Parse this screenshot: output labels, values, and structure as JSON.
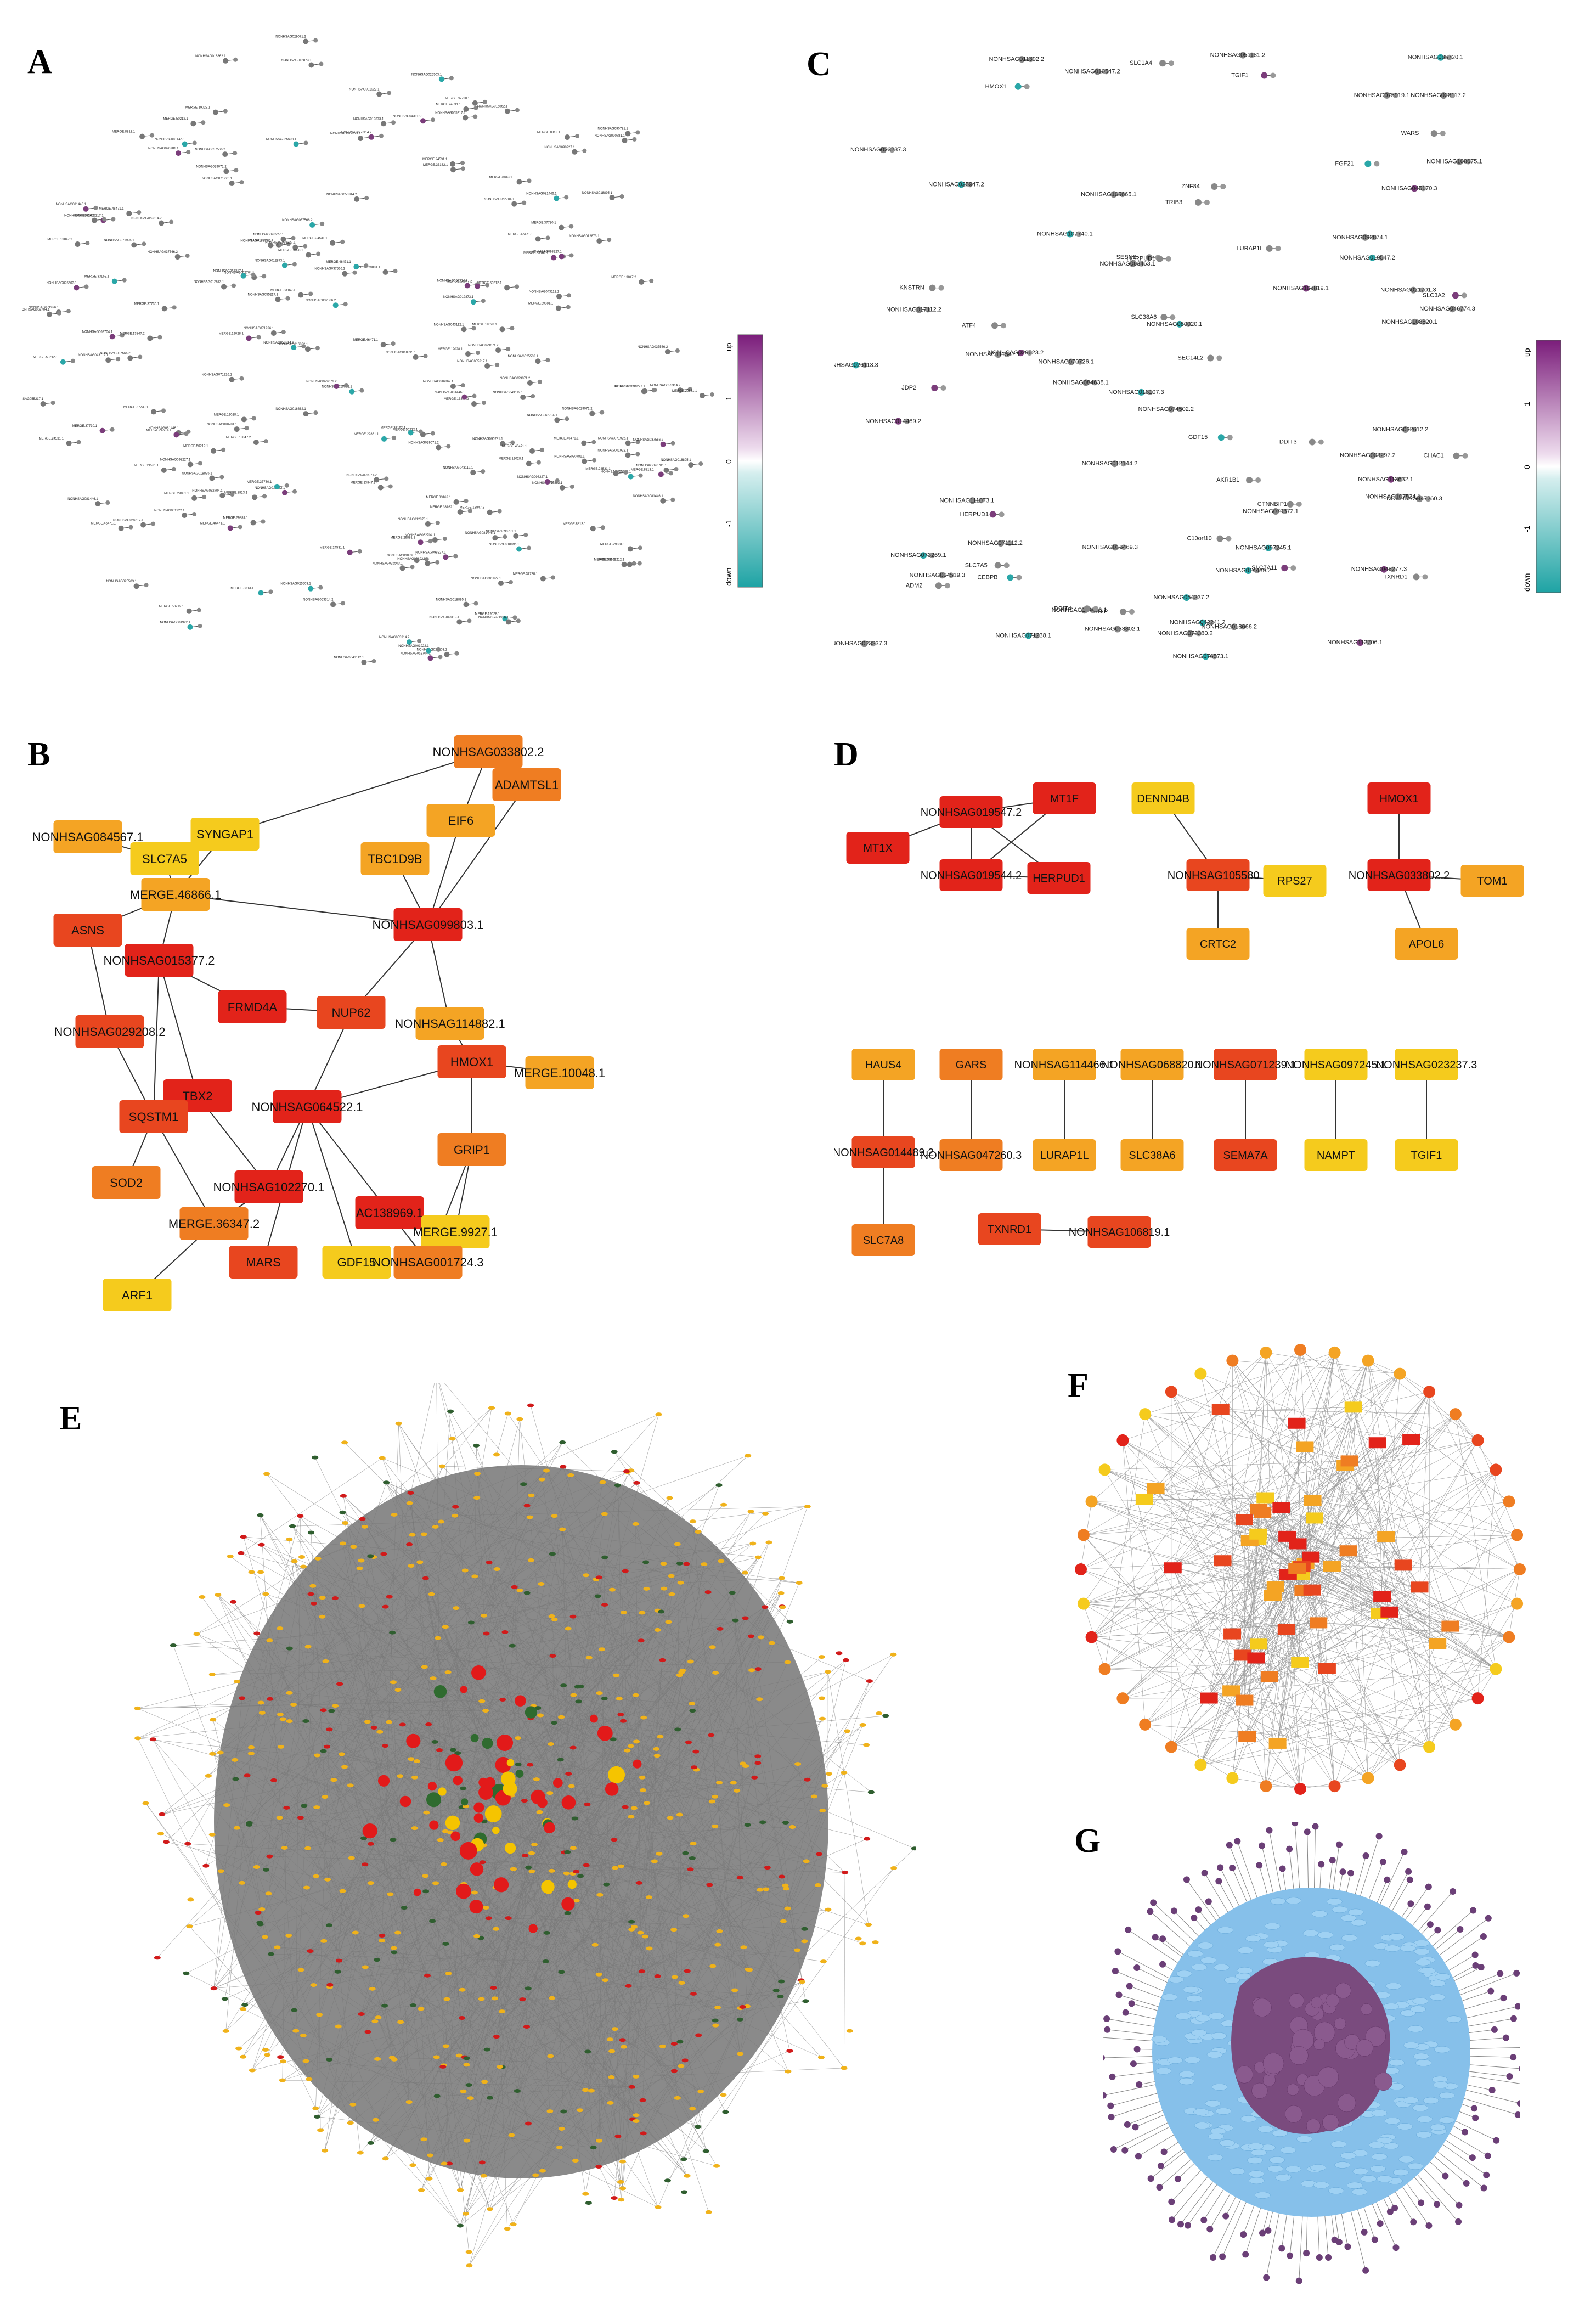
{
  "panels": {
    "A": "A",
    "B": "B",
    "C": "C",
    "D": "D",
    "E": "E",
    "F": "F",
    "G": "G"
  },
  "colors": {
    "red": "#e2231a",
    "red_orange": "#e8461f",
    "orange": "#ef7d22",
    "light_orange": "#f4a424",
    "yellow": "#f5cb1d",
    "purple": "#7b3d7b",
    "cyan": "#2aa7a8",
    "edge": "#6f6f6f",
    "lightblue": "#86c0ea"
  },
  "colorbar": {
    "top_label": "up",
    "bottom_label": "down",
    "ticks": [
      "1",
      "0",
      "-1"
    ]
  },
  "panelA": {
    "labels": [
      "NONHSAG037566.2",
      "MERGE.29881.1",
      "NONHSAG090781.1",
      "NONHSAG016862.1",
      "MERGE.19028.1",
      "NONHSAG043112.1",
      "MERGE.13847.2",
      "NONHSAG098227.1",
      "MERGE.46471.1",
      "NONHSAG053314.2",
      "NONHSAG018895.1",
      "MERGE.37730.1",
      "NONHSAG012873.1",
      "NONHSAG055217.1",
      "MERGE.33162.1",
      "NONHSAG071926.1",
      "NONHSAG029071.2",
      "MERGE.8813.1",
      "NONHSAG062704.1",
      "NONHSAG025503.1",
      "MERGE.24531.1",
      "NONHSAG081446.1",
      "NONHSAG001922.1",
      "MERGE.50212.1"
    ]
  },
  "panelC": {
    "labels": [
      "NONHSAG042241.2",
      "NONHSAG045170.3",
      "NONHSAG032612.2",
      "NONHSAG070726.1",
      "NONHSAG112706.1",
      "NONHSAG029623.2",
      "ZNF84",
      "NONHSAG019547.2",
      "NONHSAG025947.2",
      "NONHSAG047260.3",
      "NONHSAG014489.2",
      "NONHSAG083463.1",
      "NONHSAG085720.1",
      "NONHSAG048277.3",
      "SLC38A6",
      "HMOX1",
      "NONHSAG033802.1",
      "TXNRD1",
      "NONHSAG079372.1",
      "AKR1B1",
      "NONHSAG107524.1",
      "NONHSAG004519.3",
      "NONHSAG113632.1",
      "NONHSAG097245.1",
      "NONHSAG108819.1",
      "ATF4",
      "NONHSAG051181.2",
      "NONHSAG028117.2",
      "NONHSAG071238.1",
      "SLC7A5",
      "NONHSAG011392.2",
      "NONHSAG114466.1",
      "LURAP1L",
      "NONHSAG026113.3",
      "SESN2",
      "NONHSAG023237.3",
      "NONHSAG074502.2",
      "NONHSAG092874.1",
      "CTNNBIP1",
      "NONHSAG075919.1",
      "WARS",
      "NONHSAG080020.1",
      "TGIF1",
      "NONHSAG023237.3",
      "FGF21",
      "NONHSAG010547.2",
      "NONHSAG073380.2",
      "NONHSAG111073.1",
      "CEBPB",
      "SLC3A2",
      "NONHSAG111547.1",
      "NONHSAG084638.1",
      "CHAC1",
      "NONHSAG107740.1",
      "HERPUD1",
      "NONHSAG054237.2",
      "NONHSAG071112.2",
      "NONHSAG012144.2",
      "KNSTRN",
      "NONHSAG073259.1",
      "NONHSAG021701.3",
      "NONHSAG018107.3",
      "TXNIP",
      "SLC1A4",
      "NONHSAG046774.3",
      "NONHSAG017112.2",
      "NONHSAG108675.1",
      "NONHSAG018666.2",
      "NONHSAG105665.1",
      "DDIT3",
      "NONHSAG076573.1",
      "NONHSAG003297.2",
      "NONHSAG016469.3",
      "C10orf10",
      "DDIT4",
      "HERPUD1",
      "SLC7A11",
      "JDP2",
      "ADM2",
      "GDF15",
      "TRIB3",
      "SEC14L2",
      "NONHSAG108820.1",
      "NONHSAG014489.2"
    ]
  },
  "panelB": {
    "nodes": [
      {
        "label": "NONHSAG033802.2",
        "level": "orange"
      },
      {
        "label": "ADAMTSL1",
        "level": "orange"
      },
      {
        "label": "EIF6",
        "level": "light_orange"
      },
      {
        "label": "SYNGAP1",
        "level": "yellow"
      },
      {
        "label": "TBC1D9B",
        "level": "light_orange"
      },
      {
        "label": "NONHSAG084567.1",
        "level": "light_orange"
      },
      {
        "label": "SLC7A5",
        "level": "yellow"
      },
      {
        "label": "MERGE.46866.1",
        "level": "light_orange"
      },
      {
        "label": "NONHSAG099803.1",
        "level": "red"
      },
      {
        "label": "ASNS",
        "level": "red_orange"
      },
      {
        "label": "NONHSAG015377.2",
        "level": "red"
      },
      {
        "label": "FRMD4A",
        "level": "red"
      },
      {
        "label": "NUP62",
        "level": "red_orange"
      },
      {
        "label": "NONHSAG114882.1",
        "level": "light_orange"
      },
      {
        "label": "NONHSAG029208.2",
        "level": "red_orange"
      },
      {
        "label": "HMOX1",
        "level": "red_orange"
      },
      {
        "label": "MERGE.10048.1",
        "level": "light_orange"
      },
      {
        "label": "TBX2",
        "level": "red"
      },
      {
        "label": "SQSTM1",
        "level": "red_orange"
      },
      {
        "label": "NONHSAG064522.1",
        "level": "red"
      },
      {
        "label": "GRIP1",
        "level": "orange"
      },
      {
        "label": "SOD2",
        "level": "orange"
      },
      {
        "label": "NONHSAG102270.1",
        "level": "red"
      },
      {
        "label": "AC138969.1",
        "level": "red"
      },
      {
        "label": "MERGE.36347.2",
        "level": "orange"
      },
      {
        "label": "MERGE.9927.1",
        "level": "yellow"
      },
      {
        "label": "MARS",
        "level": "red_orange"
      },
      {
        "label": "GDF15",
        "level": "yellow"
      },
      {
        "label": "NONHSAG001724.3",
        "level": "orange"
      },
      {
        "label": "ARF1",
        "level": "yellow"
      }
    ]
  },
  "panelD": {
    "nodes": [
      {
        "label": "MT1F",
        "level": "red"
      },
      {
        "label": "NONHSAG019547.2",
        "level": "red"
      },
      {
        "label": "MT1X",
        "level": "red"
      },
      {
        "label": "NONHSAG019544.2",
        "level": "red"
      },
      {
        "label": "HERPUD1",
        "level": "red"
      },
      {
        "label": "DENND4B",
        "level": "yellow"
      },
      {
        "label": "NONHSAG105580.1",
        "level": "red_orange"
      },
      {
        "label": "RPS27",
        "level": "yellow"
      },
      {
        "label": "CRTC2",
        "level": "light_orange"
      },
      {
        "label": "HMOX1",
        "level": "red"
      },
      {
        "label": "NONHSAG033802.2",
        "level": "red"
      },
      {
        "label": "TOM1",
        "level": "light_orange"
      },
      {
        "label": "APOL6",
        "level": "light_orange"
      },
      {
        "label": "HAUS4",
        "level": "light_orange"
      },
      {
        "label": "NONHSAG014489.2",
        "level": "red_orange"
      },
      {
        "label": "SLC7A8",
        "level": "orange"
      },
      {
        "label": "GARS",
        "level": "orange"
      },
      {
        "label": "NONHSAG047260.3",
        "level": "orange"
      },
      {
        "label": "NONHSAG114466.1",
        "level": "light_orange"
      },
      {
        "label": "LURAP1L",
        "level": "light_orange"
      },
      {
        "label": "NONHSAG068820.1",
        "level": "light_orange"
      },
      {
        "label": "SLC38A6",
        "level": "light_orange"
      },
      {
        "label": "NONHSAG071239.1",
        "level": "red_orange"
      },
      {
        "label": "SEMA7A",
        "level": "red_orange"
      },
      {
        "label": "NONHSAG097245.1",
        "level": "yellow"
      },
      {
        "label": "NAMPT",
        "level": "yellow"
      },
      {
        "label": "NONHSAG023237.3",
        "level": "yellow"
      },
      {
        "label": "TGIF1",
        "level": "yellow"
      },
      {
        "label": "TXNRD1",
        "level": "red_orange"
      },
      {
        "label": "NONHSAG106819.1",
        "level": "red_orange"
      }
    ]
  }
}
